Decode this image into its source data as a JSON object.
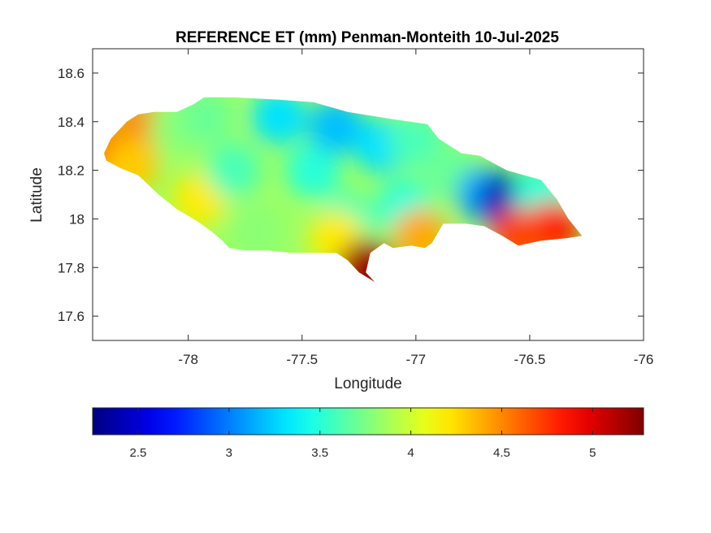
{
  "chart_data": {
    "type": "heatmap",
    "title": "REFERENCE ET (mm) Penman-Monteith 10-Jul-2025",
    "xlabel": "Longitude",
    "ylabel": "Latitude",
    "xlim": [
      -78.42,
      -76
    ],
    "ylim": [
      17.5,
      18.7
    ],
    "xticks": [
      -78,
      -77.5,
      -77,
      -76.5,
      -76
    ],
    "xtick_labels": [
      "-78",
      "-77.5",
      "-77",
      "-76.5",
      "-76"
    ],
    "yticks": [
      17.6,
      17.8,
      18.0,
      18.2,
      18.4,
      18.6
    ],
    "ytick_labels": [
      "17.6",
      "17.8",
      "18",
      "18.2",
      "18.4",
      "18.6"
    ],
    "grid": false,
    "colormap": "jet",
    "colorbar": {
      "orientation": "horizontal",
      "placement": "below",
      "range": [
        2.25,
        5.28
      ],
      "ticks": [
        2.5,
        3,
        3.5,
        4,
        4.5,
        5
      ],
      "tick_labels": [
        "2.5",
        "3",
        "3.5",
        "4",
        "4.5",
        "5"
      ]
    },
    "region": "Jamaica",
    "boundary": [
      [
        -78.37,
        18.27
      ],
      [
        -78.34,
        18.33
      ],
      [
        -78.27,
        18.4
      ],
      [
        -78.22,
        18.43
      ],
      [
        -78.15,
        18.44
      ],
      [
        -78.05,
        18.44
      ],
      [
        -77.98,
        18.47
      ],
      [
        -77.93,
        18.5
      ],
      [
        -77.8,
        18.5
      ],
      [
        -77.6,
        18.49
      ],
      [
        -77.45,
        18.48
      ],
      [
        -77.3,
        18.44
      ],
      [
        -77.1,
        18.41
      ],
      [
        -76.95,
        18.39
      ],
      [
        -76.9,
        18.33
      ],
      [
        -76.8,
        18.27
      ],
      [
        -76.72,
        18.26
      ],
      [
        -76.6,
        18.2
      ],
      [
        -76.45,
        18.16
      ],
      [
        -76.38,
        18.08
      ],
      [
        -76.33,
        18.0
      ],
      [
        -76.27,
        17.93
      ],
      [
        -76.34,
        17.92
      ],
      [
        -76.45,
        17.91
      ],
      [
        -76.55,
        17.89
      ],
      [
        -76.62,
        17.93
      ],
      [
        -76.7,
        17.97
      ],
      [
        -76.78,
        17.98
      ],
      [
        -76.88,
        17.98
      ],
      [
        -76.93,
        17.9
      ],
      [
        -76.96,
        17.88
      ],
      [
        -77.02,
        17.89
      ],
      [
        -77.1,
        17.88
      ],
      [
        -77.14,
        17.9
      ],
      [
        -77.2,
        17.86
      ],
      [
        -77.22,
        17.78
      ],
      [
        -77.18,
        17.74
      ],
      [
        -77.25,
        17.78
      ],
      [
        -77.3,
        17.83
      ],
      [
        -77.35,
        17.86
      ],
      [
        -77.45,
        17.86
      ],
      [
        -77.55,
        17.86
      ],
      [
        -77.65,
        17.87
      ],
      [
        -77.75,
        17.87
      ],
      [
        -77.82,
        17.88
      ],
      [
        -77.85,
        17.91
      ],
      [
        -77.9,
        17.95
      ],
      [
        -77.96,
        17.99
      ],
      [
        -78.05,
        18.04
      ],
      [
        -78.13,
        18.1
      ],
      [
        -78.22,
        18.18
      ],
      [
        -78.3,
        18.21
      ],
      [
        -78.36,
        18.24
      ]
    ],
    "value_field": [
      {
        "lon": -78.33,
        "lat": 18.27,
        "value": 4.6
      },
      {
        "lon": -78.2,
        "lat": 18.37,
        "value": 4.5
      },
      {
        "lon": -78.25,
        "lat": 18.22,
        "value": 4.3
      },
      {
        "lon": -78.05,
        "lat": 18.37,
        "value": 3.8
      },
      {
        "lon": -77.92,
        "lat": 18.42,
        "value": 3.7
      },
      {
        "lon": -77.95,
        "lat": 18.08,
        "value": 4.2
      },
      {
        "lon": -77.8,
        "lat": 18.2,
        "value": 3.6
      },
      {
        "lon": -77.7,
        "lat": 17.95,
        "value": 3.8
      },
      {
        "lon": -77.6,
        "lat": 18.42,
        "value": 3.3
      },
      {
        "lon": -77.45,
        "lat": 18.2,
        "value": 3.5
      },
      {
        "lon": -77.35,
        "lat": 18.38,
        "value": 3.2
      },
      {
        "lon": -77.15,
        "lat": 18.3,
        "value": 3.3
      },
      {
        "lon": -77.0,
        "lat": 18.32,
        "value": 3.6
      },
      {
        "lon": -77.3,
        "lat": 18.0,
        "value": 3.6
      },
      {
        "lon": -77.35,
        "lat": 17.92,
        "value": 4.2
      },
      {
        "lon": -77.22,
        "lat": 17.8,
        "value": 5.2
      },
      {
        "lon": -77.05,
        "lat": 18.05,
        "value": 3.5
      },
      {
        "lon": -76.98,
        "lat": 17.93,
        "value": 4.4
      },
      {
        "lon": -76.85,
        "lat": 18.2,
        "value": 3.7
      },
      {
        "lon": -76.7,
        "lat": 18.1,
        "value": 3.1
      },
      {
        "lon": -76.6,
        "lat": 18.07,
        "value": 2.4
      },
      {
        "lon": -76.45,
        "lat": 18.1,
        "value": 3.5
      },
      {
        "lon": -76.4,
        "lat": 17.96,
        "value": 4.8
      },
      {
        "lon": -76.55,
        "lat": 17.93,
        "value": 4.7
      }
    ]
  }
}
